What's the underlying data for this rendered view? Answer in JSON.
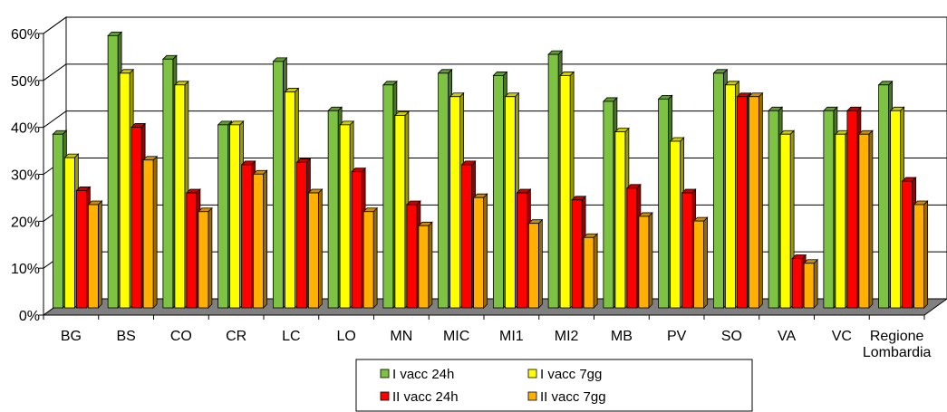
{
  "chart_data": {
    "type": "bar",
    "title": "",
    "xlabel": "",
    "ylabel": "",
    "ylim": [
      0,
      60
    ],
    "y_ticks": [
      "0%",
      "10%",
      "20%",
      "30%",
      "40%",
      "50%",
      "60%"
    ],
    "y_tick_values": [
      0,
      10,
      20,
      30,
      40,
      50,
      60
    ],
    "grid": true,
    "legend_position": "bottom",
    "categories": [
      "BG",
      "BS",
      "CO",
      "CR",
      "LC",
      "LO",
      "MN",
      "MIC",
      "MI1",
      "MI2",
      "MB",
      "PV",
      "SO",
      "VA",
      "VC",
      "Regione\nLombardia"
    ],
    "series": [
      {
        "name": "I vacc 24h",
        "color": "#7dc242",
        "values": [
          37,
          58,
          53,
          39,
          52.5,
          42,
          47.5,
          50,
          49.5,
          54,
          44,
          44.5,
          50,
          42,
          42,
          47.5
        ]
      },
      {
        "name": "I vacc 7gg",
        "color": "#ffff00",
        "values": [
          32,
          50,
          47.5,
          39,
          46,
          39,
          41,
          45,
          45,
          49.5,
          37.5,
          35.5,
          47.5,
          37,
          37,
          42
        ]
      },
      {
        "name": "II vacc 24h",
        "color": "#ff0000",
        "values": [
          25,
          38.5,
          24.5,
          30.5,
          31,
          29,
          22,
          30.5,
          24.5,
          23,
          25.5,
          24.5,
          45,
          10.5,
          42,
          27
        ]
      },
      {
        "name": "II vacc 7gg",
        "color": "#ffb000",
        "values": [
          22,
          31.5,
          20.5,
          28.5,
          24.5,
          20.5,
          17.5,
          23.5,
          18,
          15,
          19.5,
          18.5,
          45,
          9.5,
          37,
          22
        ]
      }
    ]
  }
}
